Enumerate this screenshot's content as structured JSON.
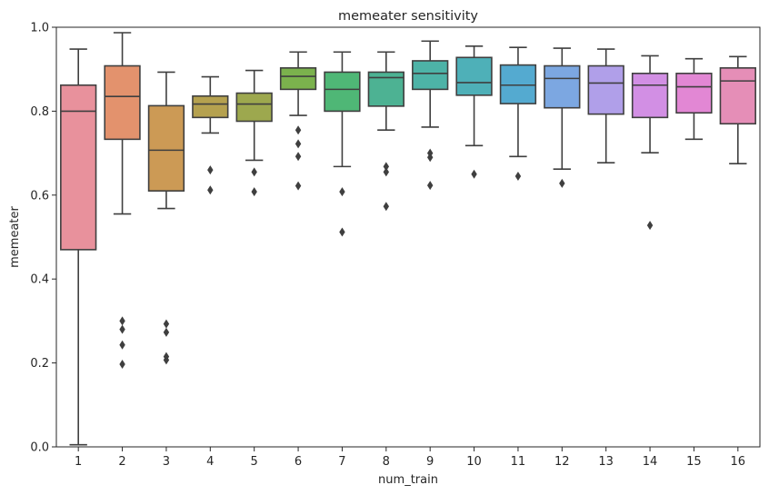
{
  "chart_data": {
    "type": "box",
    "title": "memeater sensitivity",
    "xlabel": "num_train",
    "ylabel": "memeater",
    "ylim": [
      0.0,
      1.0
    ],
    "yticks": [
      "0.0",
      "0.2",
      "0.4",
      "0.6",
      "0.8",
      "1.0"
    ],
    "grid": false,
    "categories": [
      "1",
      "2",
      "3",
      "4",
      "5",
      "6",
      "7",
      "8",
      "9",
      "10",
      "11",
      "12",
      "13",
      "14",
      "15",
      "16"
    ],
    "boxes": [
      {
        "category": "1",
        "whisker_low": 0.005,
        "q1": 0.47,
        "median": 0.8,
        "q3": 0.862,
        "whisker_high": 0.948,
        "outliers": [],
        "color": "#e8919c"
      },
      {
        "category": "2",
        "whisker_low": 0.555,
        "q1": 0.733,
        "median": 0.835,
        "q3": 0.908,
        "whisker_high": 0.987,
        "outliers": [
          0.3,
          0.28,
          0.243,
          0.197
        ],
        "color": "#e3926d"
      },
      {
        "category": "3",
        "whisker_low": 0.568,
        "q1": 0.61,
        "median": 0.707,
        "q3": 0.813,
        "whisker_high": 0.893,
        "outliers": [
          0.293,
          0.273,
          0.215,
          0.207
        ],
        "color": "#cc9a55"
      },
      {
        "category": "4",
        "whisker_low": 0.748,
        "q1": 0.785,
        "median": 0.817,
        "q3": 0.836,
        "whisker_high": 0.882,
        "outliers": [
          0.66,
          0.612
        ],
        "color": "#b5a14f"
      },
      {
        "category": "5",
        "whisker_low": 0.683,
        "q1": 0.776,
        "median": 0.817,
        "q3": 0.843,
        "whisker_high": 0.897,
        "outliers": [
          0.655,
          0.608
        ],
        "color": "#9da84e"
      },
      {
        "category": "6",
        "whisker_low": 0.79,
        "q1": 0.852,
        "median": 0.883,
        "q3": 0.903,
        "whisker_high": 0.941,
        "outliers": [
          0.755,
          0.722,
          0.692,
          0.622
        ],
        "color": "#7bb24d"
      },
      {
        "category": "7",
        "whisker_low": 0.668,
        "q1": 0.8,
        "median": 0.852,
        "q3": 0.893,
        "whisker_high": 0.941,
        "outliers": [
          0.608,
          0.512
        ],
        "color": "#4fb776"
      },
      {
        "category": "8",
        "whisker_low": 0.755,
        "q1": 0.812,
        "median": 0.88,
        "q3": 0.893,
        "whisker_high": 0.941,
        "outliers": [
          0.668,
          0.655,
          0.573
        ],
        "color": "#4db293"
      },
      {
        "category": "9",
        "whisker_low": 0.762,
        "q1": 0.852,
        "median": 0.89,
        "q3": 0.92,
        "whisker_high": 0.967,
        "outliers": [
          0.7,
          0.69,
          0.623
        ],
        "color": "#4db3a7"
      },
      {
        "category": "10",
        "whisker_low": 0.718,
        "q1": 0.838,
        "median": 0.868,
        "q3": 0.928,
        "whisker_high": 0.955,
        "outliers": [
          0.65
        ],
        "color": "#4eb0b8"
      },
      {
        "category": "11",
        "whisker_low": 0.692,
        "q1": 0.818,
        "median": 0.862,
        "q3": 0.91,
        "whisker_high": 0.952,
        "outliers": [
          0.645
        ],
        "color": "#54aad0"
      },
      {
        "category": "12",
        "whisker_low": 0.662,
        "q1": 0.808,
        "median": 0.878,
        "q3": 0.908,
        "whisker_high": 0.95,
        "outliers": [
          0.628
        ],
        "color": "#7ca7e1"
      },
      {
        "category": "13",
        "whisker_low": 0.677,
        "q1": 0.793,
        "median": 0.867,
        "q3": 0.908,
        "whisker_high": 0.948,
        "outliers": [],
        "color": "#b09fe9"
      },
      {
        "category": "14",
        "whisker_low": 0.701,
        "q1": 0.785,
        "median": 0.862,
        "q3": 0.89,
        "whisker_high": 0.932,
        "outliers": [
          0.528
        ],
        "color": "#d28fe4"
      },
      {
        "category": "15",
        "whisker_low": 0.733,
        "q1": 0.796,
        "median": 0.858,
        "q3": 0.89,
        "whisker_high": 0.925,
        "outliers": [],
        "color": "#e287d4"
      },
      {
        "category": "16",
        "whisker_low": 0.675,
        "q1": 0.77,
        "median": 0.872,
        "q3": 0.903,
        "whisker_high": 0.93,
        "outliers": [],
        "color": "#e58eb7"
      }
    ]
  }
}
